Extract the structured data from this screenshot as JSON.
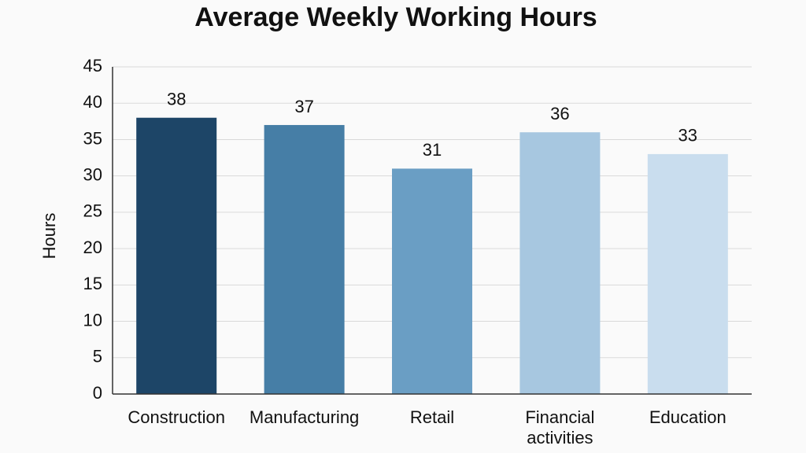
{
  "chart_data": {
    "type": "bar",
    "title": "Average Weekly Working Hours",
    "y_label": "Hours",
    "categories": [
      "Construction",
      "Manufacturing",
      "Retail",
      "Financial activities",
      "Education"
    ],
    "values": [
      38,
      37,
      31,
      36,
      33
    ],
    "colors": [
      "#1d4567",
      "#467ea6",
      "#6a9ec4",
      "#a7c7e0",
      "#c9ddee"
    ],
    "ylim": [
      0,
      45
    ],
    "yticks": [
      0,
      5,
      10,
      15,
      20,
      25,
      30,
      35,
      40,
      45
    ],
    "grid": true
  }
}
